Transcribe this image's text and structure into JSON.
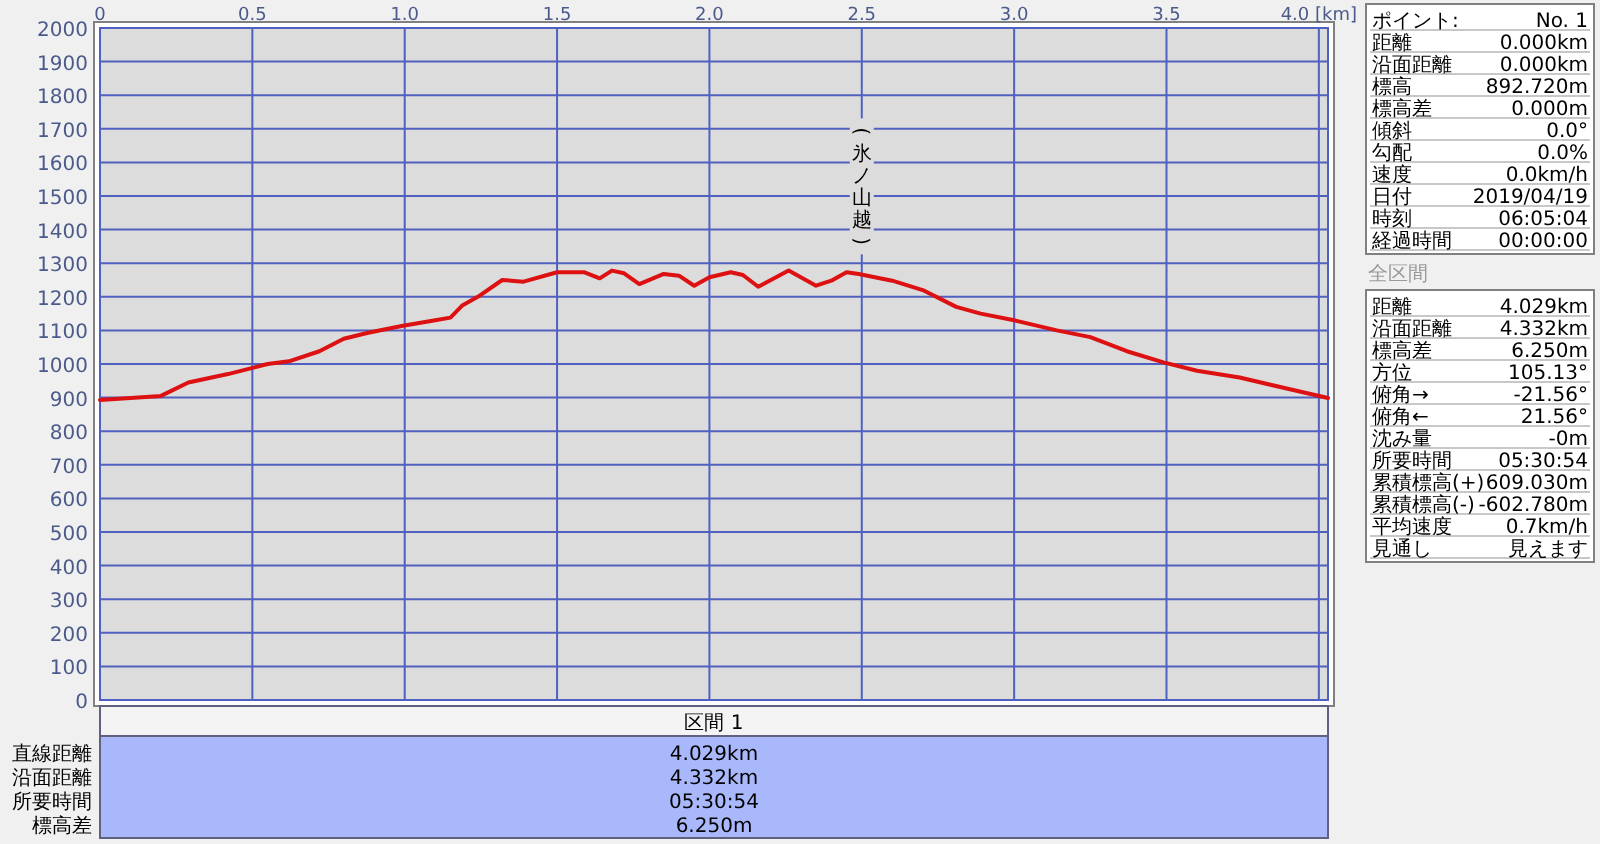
{
  "chart_data": {
    "type": "line",
    "xlim": [
      0,
      4.03
    ],
    "xticks": [
      0,
      {
        "value": 0.5,
        "label": "0.5"
      },
      {
        "value": 1,
        "label": "1.0"
      },
      {
        "value": 1.5,
        "label": "1.5"
      },
      {
        "value": 2,
        "label": "2.0"
      },
      {
        "value": 2.5,
        "label": "2.5"
      },
      {
        "value": 3,
        "label": "3.0"
      },
      {
        "value": 3.5,
        "label": "3.5"
      },
      {
        "value": 4,
        "label": "4.0 [km]"
      }
    ],
    "ylim": [
      0,
      2000
    ],
    "yticks": [
      0,
      100,
      200,
      300,
      400,
      500,
      600,
      700,
      800,
      900,
      1000,
      1100,
      1200,
      1300,
      1400,
      1500,
      1600,
      1700,
      1800,
      1900,
      2000
    ],
    "grid": true,
    "series": [
      {
        "color": "#dd1111",
        "x": [
          0,
          0.2,
          0.29,
          0.42,
          0.55,
          0.62,
          0.72,
          0.8,
          0.88,
          0.99,
          1.1,
          1.15,
          1.19,
          1.24,
          1.32,
          1.39,
          1.5,
          1.59,
          1.64,
          1.68,
          1.72,
          1.77,
          1.85,
          1.9,
          1.95,
          2.0,
          2.07,
          2.11,
          2.16,
          2.26,
          2.35,
          2.4,
          2.45,
          2.49,
          2.6,
          2.7,
          2.81,
          2.89,
          3.0,
          3.14,
          3.25,
          3.37,
          3.49,
          3.6,
          3.74,
          3.88,
          4.03
        ],
        "values": [
          893,
          905,
          945,
          970,
          1000,
          1008,
          1038,
          1075,
          1093,
          1113,
          1130,
          1138,
          1175,
          1200,
          1250,
          1245,
          1273,
          1273,
          1255,
          1278,
          1270,
          1238,
          1268,
          1263,
          1233,
          1258,
          1273,
          1265,
          1230,
          1278,
          1233,
          1248,
          1273,
          1268,
          1248,
          1220,
          1170,
          1150,
          1130,
          1100,
          1080,
          1038,
          1005,
          980,
          960,
          930,
          899
        ]
      }
    ],
    "annotations": [
      {
        "text": "(氷ノ山越)",
        "x": 2.5,
        "y": 1273
      },
      "ポイント:",
      "No. 1",
      "距離",
      "0.000km",
      "沿面距離",
      "0.000km",
      "標高",
      "892.720m",
      "標高差",
      "0.000m",
      "傾斜",
      "0.0°",
      "勾配",
      "0.0%",
      "速度",
      "0.0km/h",
      "日付",
      "2019/04/19",
      "時刻",
      "06:05:04",
      "経過時間",
      "00:00:00",
      "全区間",
      "距離",
      "4.029km",
      "沿面距離",
      "4.332km",
      "標高差",
      "6.250m",
      "方位",
      "105.13°",
      "俯角→",
      "-21.56°",
      "俯角←",
      "21.56°",
      "沈み量",
      "-0m",
      "所要時間",
      "05:30:54",
      "累積標高(+)",
      "609.030m",
      "累積標高(-)",
      "-602.780m",
      "平均速度",
      "0.7km/h",
      "見通し",
      "見えます",
      "区間 1",
      "直線距離",
      "4.029km",
      "沿面距離",
      "4.332km",
      "所要時間",
      "05:30:54",
      "標高差",
      "6.250m"
    ]
  }
}
